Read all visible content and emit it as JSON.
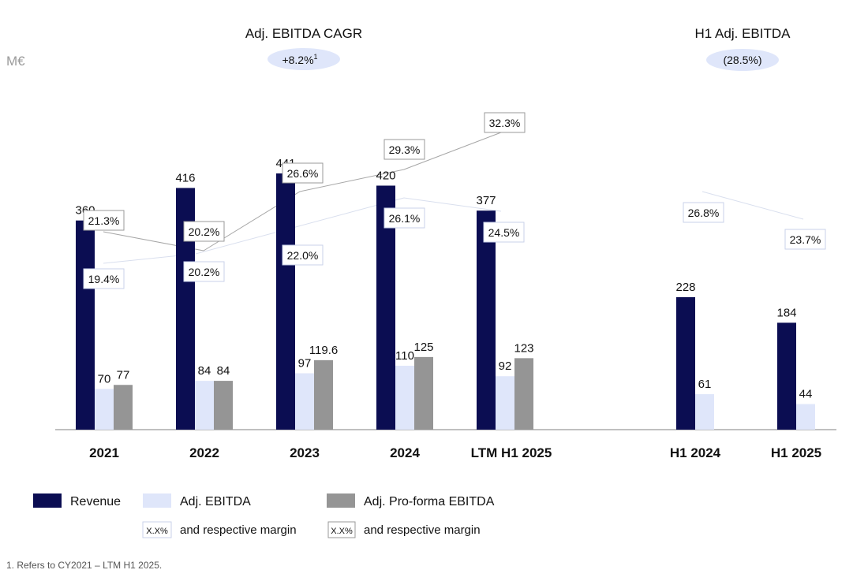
{
  "unit_label": "M€",
  "colors": {
    "revenue": "#0b0d52",
    "adj_ebitda": "#dfe6fa",
    "proforma": "#959595",
    "pill": "#dfe6fa",
    "axis": "#9a9a9a",
    "margin_line_light": "#d9dfee",
    "margin_line_dark": "#a6a6a6"
  },
  "headers": {
    "cagr": {
      "title": "Adj. EBITDA CAGR",
      "value": "+8.2%",
      "superscript": "1"
    },
    "h1": {
      "title": "H1 Adj. EBITDA",
      "value": "(28.5%)"
    }
  },
  "chart_data": {
    "type": "bar",
    "title": "",
    "ylabel": "M€",
    "categories": [
      "2021",
      "2022",
      "2023",
      "2024",
      "LTM H1 2025",
      "H1 2024",
      "H1 2025"
    ],
    "series": [
      {
        "name": "Revenue",
        "values": [
          360,
          416,
          441,
          420,
          377,
          228,
          184
        ]
      },
      {
        "name": "Adj. EBITDA",
        "values": [
          70,
          84,
          97,
          110,
          92,
          61,
          44
        ]
      },
      {
        "name": "Adj. Pro-forma EBITDA",
        "values": [
          77,
          84,
          119.6,
          125,
          123,
          null,
          null
        ]
      }
    ],
    "value_labels": {
      "Revenue": [
        "360",
        "416",
        "441",
        "420",
        "377",
        "228",
        "184"
      ],
      "Adj. EBITDA": [
        "70",
        "84",
        "97",
        "110",
        "92",
        "61",
        "44"
      ],
      "Adj. Pro-forma EBITDA": [
        "77",
        "84",
        "119.6",
        "125",
        "123",
        null,
        null
      ]
    },
    "margins": {
      "Adj. EBITDA": [
        "19.4%",
        "20.2%",
        "22.0%",
        "26.1%",
        "24.5%",
        "26.8%",
        "23.7%"
      ],
      "Adj. Pro-forma EBITDA": [
        "21.3%",
        "20.2%",
        "26.6%",
        "29.3%",
        "32.3%",
        null,
        null
      ]
    },
    "ylim": [
      0,
      480
    ]
  },
  "legend": {
    "revenue": "Revenue",
    "adj_ebitda": "Adj. EBITDA",
    "proforma": "Adj. Pro-forma EBITDA",
    "margin_box_text": "X.X%",
    "margin_caption_1": "and respective margin",
    "margin_caption_2": "and respective margin"
  },
  "footnote": "1.  Refers to CY2021 – LTM H1 2025."
}
